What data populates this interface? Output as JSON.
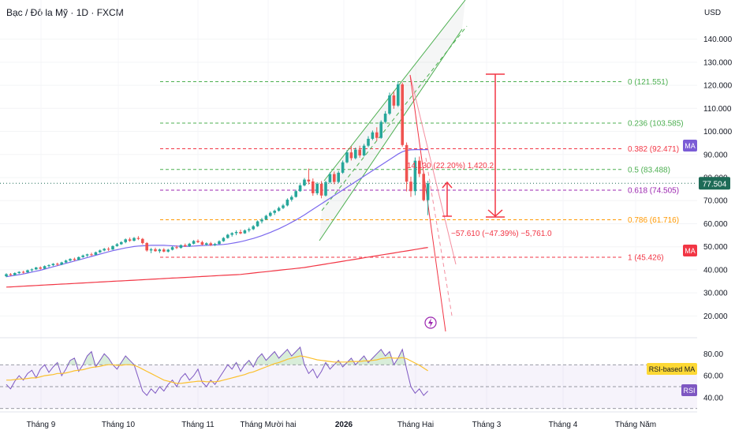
{
  "header": {
    "title": "Bạc / Đô la Mỹ · 1D · FXCM",
    "currency": "USD"
  },
  "colors": {
    "up": "#26a69a",
    "down": "#ef5350",
    "ma_purple": "#7b68ee",
    "ma_red": "#f23645",
    "channel": "#4caf50",
    "fib_green": "#4caf50",
    "fib_red": "#f23645",
    "fib_purple": "#9c27b0",
    "fib_orange": "#ff9800",
    "rsi_line": "#7e57c2",
    "rsi_ma": "#fbc02d",
    "price_badge": "#1e6b57"
  },
  "chart_data": {
    "type": "candlestick",
    "price_axis": {
      "unit": "USD",
      "ylim": [
        15,
        145
      ],
      "ticks": [
        "140.000",
        "130.000",
        "120.000",
        "110.000",
        "100.000",
        "90.000",
        "80.000",
        "70.000",
        "60.000",
        "50.000",
        "40.000",
        "30.000",
        "20.000"
      ]
    },
    "time_axis": {
      "labels": [
        "Tháng 9",
        "Tháng 10",
        "Tháng 11",
        "Tháng Mười hai",
        "2026",
        "Tháng Hai",
        "Tháng 3",
        "Tháng 4",
        "Tháng Năm"
      ]
    },
    "last_price": "77.504",
    "ma_label": "MA",
    "fibonacci": [
      {
        "label": "0 (121.551)",
        "level": 121.551,
        "color_key": "fib_green"
      },
      {
        "label": "0.236 (103.585)",
        "level": 103.585,
        "color_key": "fib_green"
      },
      {
        "label": "0.382 (92.471)",
        "level": 92.471,
        "color_key": "fib_red"
      },
      {
        "label": "0.5 (83.488)",
        "level": 83.488,
        "color_key": "fib_green"
      },
      {
        "label": "0.618 (74.505)",
        "level": 74.505,
        "color_key": "fib_purple"
      },
      {
        "label": "0.786 (61.716)",
        "level": 61.716,
        "color_key": "fib_orange"
      },
      {
        "label": "1 (45.426)",
        "level": 45.426,
        "color_key": "fib_red"
      }
    ],
    "annotations": {
      "up_measure": "14.130 (22.20%) 1,420.2",
      "down_measure": "−57.610 (−47.39%) −5,761.0"
    },
    "candles_ohlc": [
      [
        37.2,
        38.5,
        36.8,
        38.1
      ],
      [
        38.1,
        38.6,
        37.4,
        37.7
      ],
      [
        37.7,
        38.9,
        37.5,
        38.6
      ],
      [
        38.6,
        39.4,
        38.2,
        39.1
      ],
      [
        39.1,
        39.6,
        38.4,
        38.9
      ],
      [
        38.9,
        40.1,
        38.7,
        39.8
      ],
      [
        39.8,
        40.6,
        39.2,
        40.2
      ],
      [
        40.2,
        41.3,
        39.9,
        41.0
      ],
      [
        41.0,
        41.5,
        40.1,
        40.5
      ],
      [
        40.5,
        41.9,
        40.3,
        41.6
      ],
      [
        41.6,
        42.4,
        41.1,
        42.0
      ],
      [
        42.0,
        42.9,
        41.6,
        42.6
      ],
      [
        42.6,
        43.1,
        41.8,
        42.3
      ],
      [
        42.3,
        43.5,
        42.0,
        43.2
      ],
      [
        43.2,
        44.4,
        42.9,
        44.0
      ],
      [
        44.0,
        45.0,
        43.6,
        44.7
      ],
      [
        44.7,
        45.3,
        43.9,
        44.3
      ],
      [
        44.3,
        45.8,
        44.1,
        45.5
      ],
      [
        45.5,
        46.6,
        45.2,
        46.2
      ],
      [
        46.2,
        47.0,
        45.6,
        46.7
      ],
      [
        46.7,
        47.4,
        46.0,
        46.5
      ],
      [
        46.5,
        47.9,
        46.3,
        47.6
      ],
      [
        47.6,
        48.8,
        47.3,
        48.4
      ],
      [
        48.4,
        49.5,
        48.0,
        49.1
      ],
      [
        49.1,
        49.8,
        48.2,
        48.8
      ],
      [
        48.8,
        50.6,
        48.6,
        50.3
      ],
      [
        50.3,
        51.6,
        50.0,
        51.1
      ],
      [
        51.1,
        52.4,
        50.8,
        52.0
      ],
      [
        52.0,
        53.6,
        51.5,
        53.2
      ],
      [
        53.2,
        54.0,
        52.1,
        52.6
      ],
      [
        52.6,
        54.2,
        52.3,
        53.8
      ],
      [
        53.8,
        54.6,
        52.9,
        53.4
      ],
      [
        53.4,
        53.8,
        51.0,
        51.6
      ],
      [
        51.6,
        52.0,
        47.9,
        48.4
      ],
      [
        48.4,
        49.5,
        47.2,
        48.9
      ],
      [
        48.9,
        49.6,
        47.8,
        48.1
      ],
      [
        48.1,
        49.2,
        47.3,
        48.8
      ],
      [
        48.8,
        49.4,
        47.6,
        47.9
      ],
      [
        47.9,
        49.1,
        47.5,
        48.7
      ],
      [
        48.7,
        50.2,
        48.4,
        49.8
      ],
      [
        49.8,
        50.6,
        49.0,
        49.5
      ],
      [
        49.5,
        51.0,
        49.2,
        50.7
      ],
      [
        50.7,
        51.4,
        49.9,
        50.2
      ],
      [
        50.2,
        51.7,
        49.9,
        51.3
      ],
      [
        51.3,
        52.9,
        51.0,
        52.5
      ],
      [
        52.5,
        53.2,
        51.6,
        52.0
      ],
      [
        52.0,
        52.6,
        50.6,
        50.9
      ],
      [
        50.9,
        51.9,
        50.4,
        51.5
      ],
      [
        51.5,
        52.1,
        50.3,
        50.7
      ],
      [
        50.7,
        51.7,
        50.3,
        51.2
      ],
      [
        51.2,
        52.8,
        51.0,
        52.4
      ],
      [
        52.4,
        54.2,
        52.1,
        53.8
      ],
      [
        53.8,
        55.6,
        53.5,
        55.2
      ],
      [
        55.2,
        56.3,
        54.4,
        55.9
      ],
      [
        55.9,
        57.1,
        55.0,
        56.4
      ],
      [
        56.4,
        57.4,
        55.4,
        55.8
      ],
      [
        55.8,
        57.5,
        55.6,
        57.1
      ],
      [
        57.1,
        58.3,
        56.3,
        57.6
      ],
      [
        57.6,
        59.4,
        57.2,
        58.9
      ],
      [
        58.9,
        61.4,
        58.6,
        61.0
      ],
      [
        61.0,
        62.5,
        60.1,
        61.8
      ],
      [
        61.8,
        63.9,
        61.5,
        63.4
      ],
      [
        63.4,
        65.3,
        63.0,
        64.7
      ],
      [
        64.7,
        66.1,
        63.8,
        65.6
      ],
      [
        65.6,
        67.4,
        65.2,
        66.8
      ],
      [
        66.8,
        68.6,
        66.3,
        67.9
      ],
      [
        67.9,
        71.0,
        67.5,
        70.4
      ],
      [
        70.4,
        72.3,
        69.6,
        71.6
      ],
      [
        71.6,
        74.7,
        71.3,
        74.1
      ],
      [
        74.1,
        77.2,
        73.8,
        76.6
      ],
      [
        76.6,
        79.8,
        76.2,
        79.1
      ],
      [
        79.1,
        83.9,
        77.0,
        78.3
      ],
      [
        78.3,
        79.6,
        72.1,
        73.2
      ],
      [
        73.2,
        78.0,
        72.4,
        77.3
      ],
      [
        77.3,
        78.5,
        71.0,
        72.2
      ],
      [
        72.2,
        78.6,
        71.8,
        78.0
      ],
      [
        78.0,
        82.3,
        77.4,
        81.5
      ],
      [
        81.5,
        82.6,
        77.1,
        78.1
      ],
      [
        78.1,
        82.9,
        77.6,
        82.1
      ],
      [
        82.1,
        87.4,
        81.6,
        86.6
      ],
      [
        86.6,
        91.9,
        86.1,
        90.9
      ],
      [
        90.9,
        93.6,
        87.4,
        88.4
      ],
      [
        88.4,
        93.0,
        87.9,
        92.1
      ],
      [
        92.1,
        93.8,
        88.6,
        89.6
      ],
      [
        89.6,
        94.6,
        89.1,
        93.8
      ],
      [
        93.8,
        97.9,
        93.2,
        96.8
      ],
      [
        96.8,
        100.4,
        96.2,
        99.6
      ],
      [
        99.6,
        101.8,
        95.9,
        97.2
      ],
      [
        97.2,
        104.8,
        96.8,
        104.1
      ],
      [
        104.1,
        108.8,
        103.4,
        107.7
      ],
      [
        107.7,
        116.8,
        107.1,
        115.6
      ],
      [
        115.6,
        117.4,
        109.8,
        111.2
      ],
      [
        111.2,
        121.6,
        110.6,
        120.4
      ],
      [
        120.4,
        121.2,
        93.4,
        94.1
      ],
      [
        94.1,
        95.2,
        74.0,
        78.2
      ],
      [
        78.2,
        80.4,
        71.6,
        74.1
      ],
      [
        74.1,
        88.7,
        72.3,
        87.3
      ],
      [
        87.3,
        89.1,
        80.2,
        81.6
      ],
      [
        81.6,
        82.4,
        69.7,
        70.2
      ],
      [
        70.2,
        78.6,
        63.7,
        77.5
      ]
    ],
    "ma_fast": [
      37,
      37.3,
      37.6,
      37.9,
      38.2,
      38.6,
      39,
      39.4,
      39.8,
      40.3,
      40.8,
      41.3,
      41.8,
      42.3,
      42.8,
      43.3,
      43.8,
      44.3,
      44.8,
      45.3,
      45.8,
      46.3,
      46.8,
      47.3,
      47.8,
      48.3,
      48.7,
      49.1,
      49.5,
      49.8,
      50.1,
      50.3,
      50.4,
      50.5,
      50.6,
      50.6,
      50.6,
      50.6,
      50.5,
      50.4,
      50.3,
      50.2,
      50.2,
      50.2,
      50.3,
      50.4,
      50.5,
      50.6,
      50.7,
      50.8,
      50.9,
      51,
      51.2,
      51.5,
      51.8,
      52.2,
      52.6,
      53.1,
      53.6,
      54.2,
      54.8,
      55.5,
      56.2,
      57,
      57.8,
      58.7,
      59.6,
      60.6,
      61.6,
      62.7,
      63.8,
      65,
      66.2,
      67.4,
      68.6,
      69.8,
      71,
      72.2,
      73.4,
      74.6,
      75.8,
      77,
      78.2,
      79.4,
      80.6,
      81.8,
      83,
      84.2,
      85.4,
      86.6,
      87.8,
      89,
      90.2,
      91.2,
      91.8,
      92,
      92.1,
      92.1,
      92.1,
      92.1
    ],
    "ma_slow": [
      32.5,
      32.6,
      32.7,
      32.8,
      32.9,
      33,
      33.1,
      33.2,
      33.3,
      33.4,
      33.5,
      33.6,
      33.7,
      33.8,
      33.9,
      34,
      34.1,
      34.2,
      34.3,
      34.4,
      34.5,
      34.6,
      34.7,
      34.8,
      34.9,
      35,
      35.1,
      35.2,
      35.3,
      35.4,
      35.5,
      35.6,
      35.7,
      35.8,
      35.9,
      36,
      36.1,
      36.2,
      36.3,
      36.4,
      36.5,
      36.6,
      36.7,
      36.8,
      36.9,
      37,
      37.1,
      37.2,
      37.3,
      37.4,
      37.5,
      37.6,
      37.7,
      37.8,
      37.9,
      38,
      38.2,
      38.4,
      38.6,
      38.8,
      39,
      39.2,
      39.4,
      39.6,
      39.8,
      40,
      40.2,
      40.4,
      40.6,
      40.8,
      41,
      41.3,
      41.6,
      41.9,
      42.2,
      42.5,
      42.8,
      43.1,
      43.4,
      43.7,
      44,
      44.3,
      44.6,
      44.9,
      45.2,
      45.5,
      45.8,
      46.1,
      46.4,
      46.7,
      47,
      47.3,
      47.6,
      47.9,
      48.2,
      48.5,
      48.8,
      49.1,
      49.4,
      49.7
    ],
    "rsi": {
      "label": "RSI",
      "ma_label": "RSI-based MA",
      "ylim": [
        32,
        86
      ],
      "ticks": [
        "80.00",
        "60.00",
        "40.00"
      ],
      "upper_band": 70,
      "mid_band": 50,
      "lower_band": 30,
      "values": [
        52,
        48,
        55,
        60,
        56,
        62,
        65,
        58,
        66,
        70,
        63,
        68,
        72,
        60,
        66,
        74,
        76,
        64,
        70,
        78,
        82,
        68,
        74,
        80,
        76,
        70,
        66,
        72,
        78,
        74,
        70,
        58,
        46,
        42,
        48,
        44,
        50,
        46,
        52,
        56,
        50,
        58,
        62,
        56,
        60,
        66,
        54,
        50,
        56,
        52,
        58,
        64,
        70,
        66,
        72,
        64,
        70,
        74,
        68,
        76,
        80,
        74,
        78,
        82,
        76,
        80,
        84,
        78,
        82,
        86,
        70,
        62,
        66,
        58,
        64,
        72,
        66,
        70,
        74,
        68,
        72,
        76,
        70,
        74,
        78,
        72,
        76,
        80,
        84,
        78,
        82,
        70,
        76,
        84,
        66,
        50,
        44,
        48,
        42,
        46
      ],
      "ma_values": [
        56,
        56,
        56.5,
        57,
        57,
        57.5,
        58,
        58,
        59,
        60,
        60.5,
        61,
        62,
        62,
        62.5,
        63.5,
        64.5,
        65,
        65.5,
        66.5,
        67.5,
        68,
        68.5,
        69.5,
        70,
        70,
        69.5,
        69.5,
        70,
        70,
        69.5,
        68,
        66,
        64,
        62,
        60,
        58,
        56,
        55,
        54,
        53,
        53,
        53.5,
        54,
        54.5,
        55,
        55,
        54.5,
        54.5,
        54.5,
        55,
        56,
        57,
        58,
        59,
        60,
        61,
        62.5,
        63.5,
        65,
        66.5,
        68,
        69.5,
        71,
        72,
        73.5,
        75,
        76,
        77,
        78,
        77.5,
        76.5,
        75.5,
        74.5,
        74,
        73.5,
        73,
        72.5,
        72.5,
        72.5,
        72.5,
        73,
        73,
        73,
        73.5,
        73.5,
        74,
        74.5,
        75.5,
        76,
        76.5,
        76,
        76,
        76.5,
        75.5,
        73.5,
        71.5,
        69.5,
        67,
        64.5
      ]
    }
  }
}
